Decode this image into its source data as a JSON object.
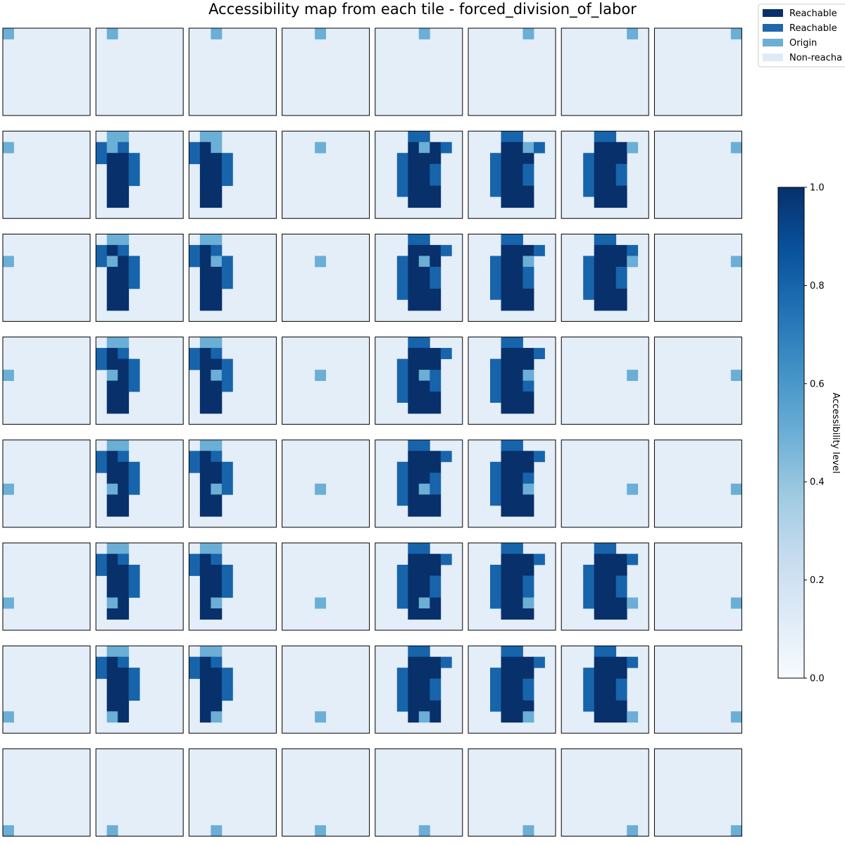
{
  "title": "Accessibility map from each tile - forced_division_of_labor",
  "legend": {
    "placement": "top-right",
    "items": [
      {
        "label": "Reachable",
        "color": "#08306b"
      },
      {
        "label": "Reachable",
        "color": "#2166ac"
      },
      {
        "label": "Origin",
        "color": "#6baed6"
      },
      {
        "label": "Non-reacha",
        "color": "#deebf7"
      }
    ]
  },
  "colorbar": {
    "label": "Accessibility level",
    "ticks": [
      "0.0",
      "0.2",
      "0.4",
      "0.6",
      "0.8",
      "1.0"
    ],
    "range": [
      0,
      1
    ],
    "colormap": [
      "#f7fbff",
      "#deebf7",
      "#c6dbef",
      "#9ecae1",
      "#6baed6",
      "#4292c6",
      "#2171b5",
      "#08519c",
      "#08306b"
    ]
  },
  "chart_data": {
    "type": "heatmap",
    "title": "Accessibility map from each tile - forced_division_of_labor",
    "grid": {
      "rows": 8,
      "cols": 8
    },
    "level_colors": {
      "0": "#e3eef8",
      "1": "#6baed6",
      "2": "#1764ab",
      "3": "#08306b"
    },
    "levels": {
      "0": "Non-reachable",
      "1": "Origin",
      "2": "Reachable",
      "3": "Reachable"
    },
    "reachable_pattern_left": [
      "01100000",
      "23200000",
      "23320000",
      "03320000",
      "03320000",
      "03300000",
      "03300000",
      "00000000"
    ],
    "reachable_pattern_right": [
      "00022000",
      "00033320",
      "00233300",
      "00233200",
      "00233200",
      "00233300",
      "00033300",
      "00000000"
    ],
    "active_cols_left": [
      1,
      2
    ],
    "active_cols_right": [
      4,
      5,
      6
    ],
    "active_rows": [
      1,
      2,
      3,
      4,
      5,
      6
    ],
    "inactive_tiles": [
      [
        3,
        6
      ],
      [
        4,
        6
      ]
    ],
    "origin_rule": "origin cell of subplot (r,c) is grid cell (r,c)"
  }
}
